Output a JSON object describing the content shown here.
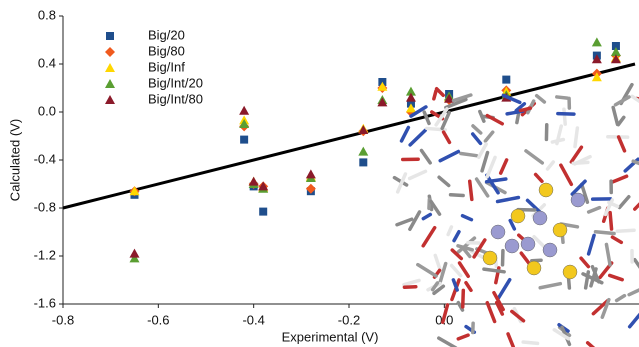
{
  "chart_data": {
    "type": "scatter",
    "x_label": "Experimental (V)",
    "y_label": "Calculated (V)",
    "x": [
      -0.65,
      -0.42,
      -0.4,
      -0.38,
      -0.28,
      -0.17,
      -0.13,
      -0.07,
      0.01,
      0.13,
      0.32,
      0.36
    ],
    "series": [
      {
        "name": "Big/20",
        "color": "#1f4e8c",
        "marker": "square",
        "values": [
          -0.69,
          -0.23,
          -0.62,
          -0.83,
          -0.66,
          -0.42,
          0.25,
          0.07,
          0.15,
          0.27,
          0.47,
          0.55
        ]
      },
      {
        "name": "Big/80",
        "color": "#f05a1e",
        "marker": "diamond",
        "values": [
          -0.66,
          -0.12,
          -0.6,
          -0.62,
          -0.64,
          -0.16,
          0.2,
          0.0,
          0.1,
          0.18,
          0.32,
          0.47
        ]
      },
      {
        "name": "Big/Inf",
        "color": "#ffd700",
        "marker": "triangle",
        "values": [
          -0.66,
          -0.07,
          -0.58,
          -0.63,
          -0.54,
          -0.14,
          0.21,
          0.03,
          0.12,
          0.17,
          0.29,
          0.45
        ]
      },
      {
        "name": "Big/Int/20",
        "color": "#5a9e32",
        "marker": "triangle",
        "values": [
          -1.22,
          -0.1,
          -0.6,
          -0.64,
          -0.55,
          -0.33,
          0.1,
          0.17,
          0.13,
          0.14,
          0.58,
          0.5
        ]
      },
      {
        "name": "Big/Int/80",
        "color": "#8b1a2a",
        "marker": "triangle",
        "values": [
          -1.18,
          0.01,
          -0.58,
          -0.62,
          -0.52,
          -0.15,
          0.08,
          0.12,
          0.11,
          0.12,
          0.44,
          0.44
        ]
      }
    ],
    "reference_line": {
      "x": [
        -0.8,
        0.4
      ],
      "y": [
        -0.8,
        0.4
      ],
      "color": "#000000"
    },
    "xlim": [
      -0.8,
      0.4
    ],
    "xticks": [
      -0.8,
      -0.6,
      -0.4,
      -0.2,
      {
        "value": 0,
        "label": "0.0"
      }
    ],
    "ylim": [
      -1.6,
      0.8
    ],
    "yticks": [
      0.8,
      0.4,
      {
        "value": 0,
        "label": "0.0"
      },
      -0.4,
      -0.8,
      -1.2,
      -1.6
    ],
    "grid": false,
    "legend": "upper-left"
  }
}
